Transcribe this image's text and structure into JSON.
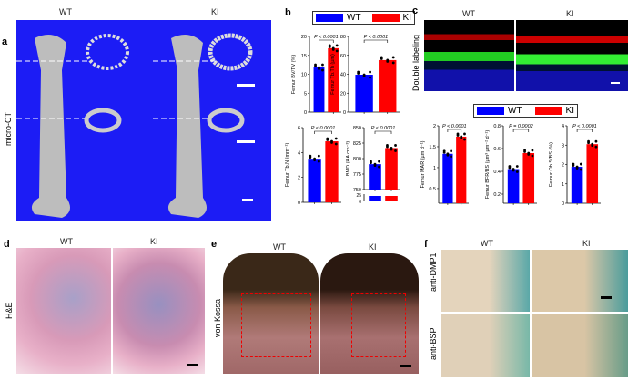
{
  "panels": {
    "a": {
      "letter": "a",
      "side_label": "micro-CT",
      "wt": "WT",
      "ki": "KI",
      "bg": "#1a1aff"
    },
    "b": {
      "letter": "b"
    },
    "c": {
      "letter": "c",
      "side_label": "Double labeling",
      "wt": "WT",
      "ki": "KI"
    },
    "d": {
      "letter": "d",
      "side_label": "H&E",
      "wt": "WT",
      "ki": "KI"
    },
    "e": {
      "letter": "e",
      "side_label": "von Kossa",
      "wt": "WT",
      "ki": "KI"
    },
    "f": {
      "letter": "f",
      "wt": "WT",
      "ki": "KI",
      "row1": "anti-DMP1",
      "row2": "anti-BSP"
    }
  },
  "legend": {
    "wt": "WT",
    "ki": "KI",
    "wt_color": "#0000ff",
    "ki_color": "#ff0000"
  },
  "chart_data": [
    {
      "type": "bar",
      "panel": "b",
      "ylabel": "Femur BV/TV (%)",
      "ylim": [
        0,
        20
      ],
      "ticks": [
        0,
        5,
        10,
        15,
        20
      ],
      "categories": [
        "WT",
        "KI"
      ],
      "values": [
        11.8,
        16.9
      ],
      "p": "P < 0.0001"
    },
    {
      "type": "bar",
      "panel": "b",
      "ylabel": "Femur Tb.Th (µm)",
      "ylim": [
        0,
        80
      ],
      "ticks": [
        0,
        20,
        40,
        60,
        80
      ],
      "categories": [
        "WT",
        "KI"
      ],
      "values": [
        39.5,
        55
      ],
      "p": "P < 0.0001"
    },
    {
      "type": "bar",
      "panel": "b",
      "ylabel": "Femur Tb.N (mm⁻¹)",
      "ylim": [
        0,
        6
      ],
      "ticks": [
        0,
        2,
        4,
        6
      ],
      "categories": [
        "WT",
        "KI"
      ],
      "values": [
        3.5,
        4.9
      ],
      "p": "P < 0.0001"
    },
    {
      "type": "bar",
      "panel": "b",
      "ylabel": "BMD (HA cm⁻³)",
      "ylim": [
        750,
        850
      ],
      "ticks": [
        750,
        775,
        800,
        825,
        850
      ],
      "break_ticks": [
        0,
        25
      ],
      "categories": [
        "WT",
        "KI"
      ],
      "values": [
        791,
        817
      ],
      "p": "P < 0.0001"
    },
    {
      "type": "bar",
      "panel": "c",
      "ylabel": "Femur MAR (µm d⁻¹)",
      "ylim": [
        0.15,
        2.0
      ],
      "ticks": [
        0.5,
        1.0,
        1.5,
        2.0
      ],
      "categories": [
        "WT",
        "KI"
      ],
      "values": [
        1.33,
        1.74
      ],
      "p": "P < 0.0001"
    },
    {
      "type": "bar",
      "panel": "c",
      "ylabel": "Femur BFR/BS (µm³ µm⁻² d⁻¹)",
      "ylim": [
        0.12,
        0.8
      ],
      "ticks": [
        0.2,
        0.4,
        0.6,
        0.8
      ],
      "categories": [
        "WT",
        "KI"
      ],
      "values": [
        0.42,
        0.56
      ],
      "p": "P = 0.0002"
    },
    {
      "type": "bar",
      "panel": "c",
      "ylabel": "Femur Ob.S/BS (%)",
      "ylim": [
        0,
        4.0
      ],
      "ticks": [
        0,
        1.0,
        2.0,
        3.0,
        4.0
      ],
      "categories": [
        "WT",
        "KI"
      ],
      "values": [
        1.88,
        3.05
      ],
      "p": "P < 0.0001"
    }
  ]
}
